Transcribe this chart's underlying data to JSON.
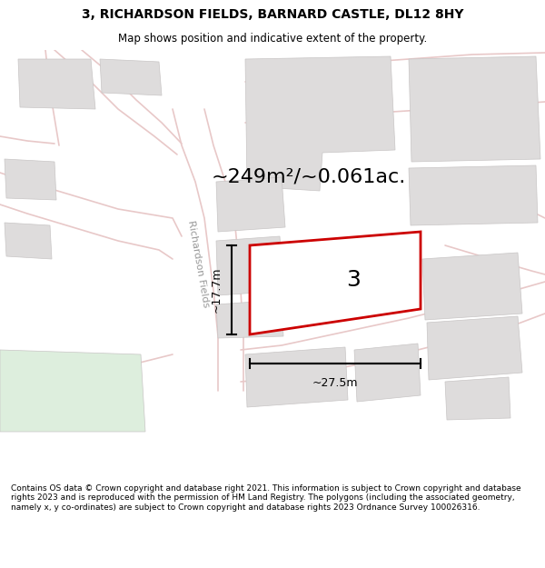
{
  "title_line1": "3, RICHARDSON FIELDS, BARNARD CASTLE, DL12 8HY",
  "title_line2": "Map shows position and indicative extent of the property.",
  "area_text": "~249m²/~0.061ac.",
  "label_number": "3",
  "dim_width": "~27.5m",
  "dim_height": "~17.7m",
  "street_label": "Richardson Fields",
  "footer_text": "Contains OS data © Crown copyright and database right 2021. This information is subject to Crown copyright and database rights 2023 and is reproduced with the permission of HM Land Registry. The polygons (including the associated geometry, namely x, y co-ordinates) are subject to Crown copyright and database rights 2023 Ordnance Survey 100026316.",
  "map_bg": "#f2f0f0",
  "building_fill": "#dedcdc",
  "building_edge": "#c8c5c5",
  "road_color": "#e8c8c8",
  "highlight_fill": "#ffffff",
  "highlight_stroke": "#cc0000",
  "green_fill": "#ddeedd",
  "street_color": "#aaaaaa",
  "title_fontsize": 10,
  "subtitle_fontsize": 8.5,
  "area_fontsize": 16,
  "dim_fontsize": 9,
  "street_fontsize": 8,
  "number_fontsize": 18,
  "footer_fontsize": 6.5
}
